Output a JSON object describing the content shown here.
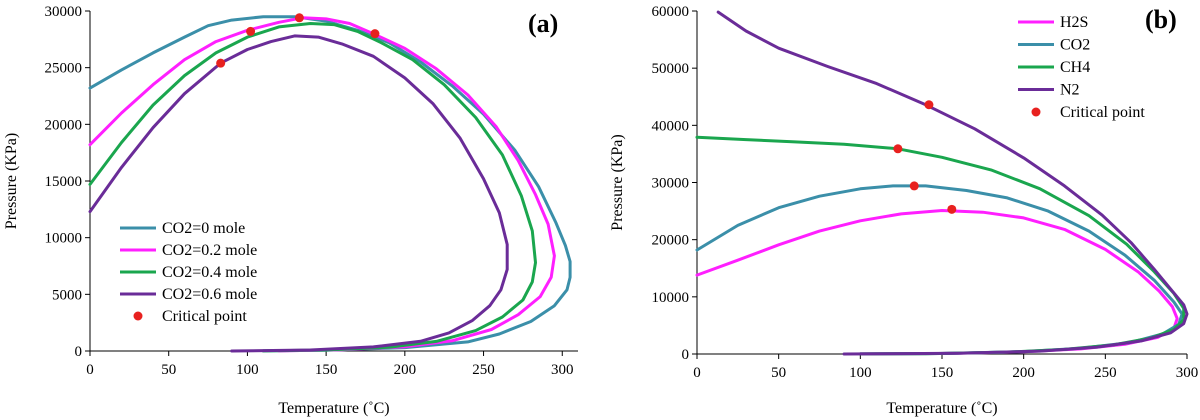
{
  "colors": {
    "teal": "#3b8fa9",
    "magenta": "#ff1fff",
    "green": "#1aa64e",
    "purple": "#6a2c98",
    "critical": "#e8211f"
  },
  "chart_data": [
    {
      "type": "line",
      "panel_label": "(a)",
      "xlabel": "Temperature (˚C)",
      "ylabel": "Pressure (KPa)",
      "xlim": [
        0,
        310
      ],
      "ylim": [
        0,
        30000
      ],
      "xticks": [
        0,
        50,
        100,
        150,
        200,
        250,
        300
      ],
      "yticks": [
        0,
        5000,
        10000,
        15000,
        20000,
        25000,
        30000
      ],
      "grid": false,
      "legend_position": "lower-left",
      "series": [
        {
          "name": "CO2=0 mole",
          "color": "teal",
          "points": [
            [
              0,
              23200
            ],
            [
              20,
              24800
            ],
            [
              40,
              26300
            ],
            [
              60,
              27700
            ],
            [
              75,
              28700
            ],
            [
              90,
              29200
            ],
            [
              110,
              29500
            ],
            [
              130,
              29500
            ],
            [
              150,
              29100
            ],
            [
              170,
              28300
            ],
            [
              190,
              27200
            ],
            [
              210,
              25500
            ],
            [
              230,
              23400
            ],
            [
              250,
              20900
            ],
            [
              270,
              17700
            ],
            [
              285,
              14500
            ],
            [
              296,
              11300
            ],
            [
              302,
              9300
            ],
            [
              305,
              7900
            ],
            [
              305,
              6500
            ],
            [
              303,
              5400
            ],
            [
              295,
              4000
            ],
            [
              280,
              2600
            ],
            [
              260,
              1500
            ],
            [
              240,
              800
            ],
            [
              200,
              300
            ],
            [
              150,
              60
            ],
            [
              110,
              10
            ]
          ]
        },
        {
          "name": "CO2=0.2 mole",
          "color": "magenta",
          "points": [
            [
              0,
              18200
            ],
            [
              20,
              21000
            ],
            [
              40,
              23500
            ],
            [
              60,
              25700
            ],
            [
              80,
              27300
            ],
            [
              100,
              28300
            ],
            [
              120,
              29000
            ],
            [
              135,
              29400
            ],
            [
              150,
              29300
            ],
            [
              165,
              28900
            ],
            [
              180,
              28000
            ],
            [
              200,
              26700
            ],
            [
              220,
              24900
            ],
            [
              240,
              22600
            ],
            [
              258,
              19800
            ],
            [
              272,
              16800
            ],
            [
              283,
              13800
            ],
            [
              291,
              11200
            ],
            [
              295,
              8400
            ],
            [
              293,
              6500
            ],
            [
              286,
              4800
            ],
            [
              272,
              3200
            ],
            [
              255,
              1900
            ],
            [
              230,
              900
            ],
            [
              200,
              380
            ],
            [
              160,
              110
            ],
            [
              120,
              10
            ]
          ]
        },
        {
          "name": "CO2=0.4 mole",
          "color": "green",
          "points": [
            [
              0,
              14700
            ],
            [
              20,
              18400
            ],
            [
              40,
              21700
            ],
            [
              60,
              24300
            ],
            [
              80,
              26300
            ],
            [
              100,
              27700
            ],
            [
              120,
              28600
            ],
            [
              140,
              28900
            ],
            [
              155,
              28800
            ],
            [
              170,
              28200
            ],
            [
              185,
              27200
            ],
            [
              205,
              25700
            ],
            [
              225,
              23500
            ],
            [
              245,
              20600
            ],
            [
              262,
              17300
            ],
            [
              274,
              13700
            ],
            [
              281,
              10600
            ],
            [
              283,
              7800
            ],
            [
              281,
              6100
            ],
            [
              275,
              4500
            ],
            [
              262,
              3000
            ],
            [
              245,
              1800
            ],
            [
              220,
              850
            ],
            [
              190,
              330
            ],
            [
              150,
              90
            ],
            [
              110,
              10
            ]
          ]
        },
        {
          "name": "CO2=0.6 mole",
          "color": "purple",
          "points": [
            [
              0,
              12300
            ],
            [
              20,
              16200
            ],
            [
              40,
              19700
            ],
            [
              60,
              22700
            ],
            [
              83,
              25400
            ],
            [
              100,
              26600
            ],
            [
              115,
              27300
            ],
            [
              130,
              27800
            ],
            [
              145,
              27700
            ],
            [
              160,
              27100
            ],
            [
              180,
              26000
            ],
            [
              200,
              24100
            ],
            [
              218,
              21800
            ],
            [
              235,
              18800
            ],
            [
              250,
              15200
            ],
            [
              260,
              12200
            ],
            [
              265,
              9400
            ],
            [
              265,
              7200
            ],
            [
              261,
              5400
            ],
            [
              254,
              4000
            ],
            [
              243,
              2700
            ],
            [
              228,
              1600
            ],
            [
              210,
              860
            ],
            [
              180,
              360
            ],
            [
              140,
              90
            ],
            [
              90,
              0
            ]
          ]
        }
      ],
      "critical_points": {
        "name": "Critical point",
        "points": [
          [
            133,
            29400
          ],
          [
            102,
            28200
          ],
          [
            181,
            28000
          ],
          [
            83,
            25400
          ]
        ]
      }
    },
    {
      "type": "line",
      "panel_label": "(b)",
      "xlabel": "Temperature (˚C)",
      "ylabel": "Pressure (KPa)",
      "xlim": [
        0,
        300
      ],
      "ylim": [
        0,
        60000
      ],
      "xticks": [
        0,
        50,
        100,
        150,
        200,
        250,
        300
      ],
      "yticks": [
        0,
        10000,
        20000,
        30000,
        40000,
        50000,
        60000
      ],
      "grid": false,
      "legend_position": "top-right",
      "series": [
        {
          "name": "H2S",
          "color": "magenta",
          "points": [
            [
              0,
              13800
            ],
            [
              25,
              16400
            ],
            [
              50,
              19100
            ],
            [
              75,
              21500
            ],
            [
              100,
              23300
            ],
            [
              125,
              24500
            ],
            [
              150,
              25100
            ],
            [
              175,
              24800
            ],
            [
              200,
              23800
            ],
            [
              225,
              21800
            ],
            [
              250,
              18300
            ],
            [
              270,
              14400
            ],
            [
              283,
              11000
            ],
            [
              291,
              8300
            ],
            [
              294,
              6200
            ],
            [
              292,
              4500
            ],
            [
              282,
              2900
            ],
            [
              262,
              1700
            ],
            [
              235,
              900
            ],
            [
              200,
              380
            ],
            [
              150,
              80
            ],
            [
              100,
              10
            ]
          ]
        },
        {
          "name": "CO2",
          "color": "teal",
          "points": [
            [
              0,
              18200
            ],
            [
              25,
              22500
            ],
            [
              50,
              25600
            ],
            [
              75,
              27600
            ],
            [
              100,
              28900
            ],
            [
              120,
              29400
            ],
            [
              140,
              29400
            ],
            [
              165,
              28600
            ],
            [
              190,
              27300
            ],
            [
              215,
              25000
            ],
            [
              240,
              21500
            ],
            [
              262,
              17300
            ],
            [
              280,
              12900
            ],
            [
              292,
              9100
            ],
            [
              297,
              7000
            ],
            [
              295,
              5200
            ],
            [
              285,
              3500
            ],
            [
              265,
              2000
            ],
            [
              235,
              1000
            ],
            [
              200,
              420
            ],
            [
              150,
              90
            ],
            [
              100,
              10
            ]
          ]
        },
        {
          "name": "CH4",
          "color": "green",
          "points": [
            [
              0,
              37900
            ],
            [
              30,
              37500
            ],
            [
              60,
              37100
            ],
            [
              90,
              36700
            ],
            [
              123,
              35900
            ],
            [
              150,
              34400
            ],
            [
              180,
              32200
            ],
            [
              210,
              28900
            ],
            [
              240,
              24200
            ],
            [
              263,
              19200
            ],
            [
              280,
              14400
            ],
            [
              292,
              10600
            ],
            [
              298,
              8000
            ],
            [
              298,
              6000
            ],
            [
              292,
              4300
            ],
            [
              278,
              2800
            ],
            [
              255,
              1600
            ],
            [
              225,
              800
            ],
            [
              190,
              330
            ],
            [
              140,
              60
            ],
            [
              100,
              10
            ]
          ]
        },
        {
          "name": "N2",
          "color": "purple",
          "points": [
            [
              13,
              59800
            ],
            [
              30,
              56500
            ],
            [
              50,
              53500
            ],
            [
              80,
              50300
            ],
            [
              110,
              47300
            ],
            [
              140,
              43600
            ],
            [
              170,
              39400
            ],
            [
              200,
              34300
            ],
            [
              225,
              29400
            ],
            [
              248,
              24300
            ],
            [
              266,
              19400
            ],
            [
              280,
              14800
            ],
            [
              291,
              11000
            ],
            [
              298,
              8600
            ],
            [
              300,
              7000
            ],
            [
              298,
              5300
            ],
            [
              290,
              3700
            ],
            [
              272,
              2300
            ],
            [
              245,
              1200
            ],
            [
              210,
              500
            ],
            [
              160,
              120
            ],
            [
              90,
              0
            ]
          ]
        }
      ],
      "critical_points": {
        "name": "Critical point",
        "points": [
          [
            142,
            43600
          ],
          [
            123,
            35900
          ],
          [
            133,
            29400
          ],
          [
            156,
            25300
          ]
        ]
      }
    }
  ]
}
